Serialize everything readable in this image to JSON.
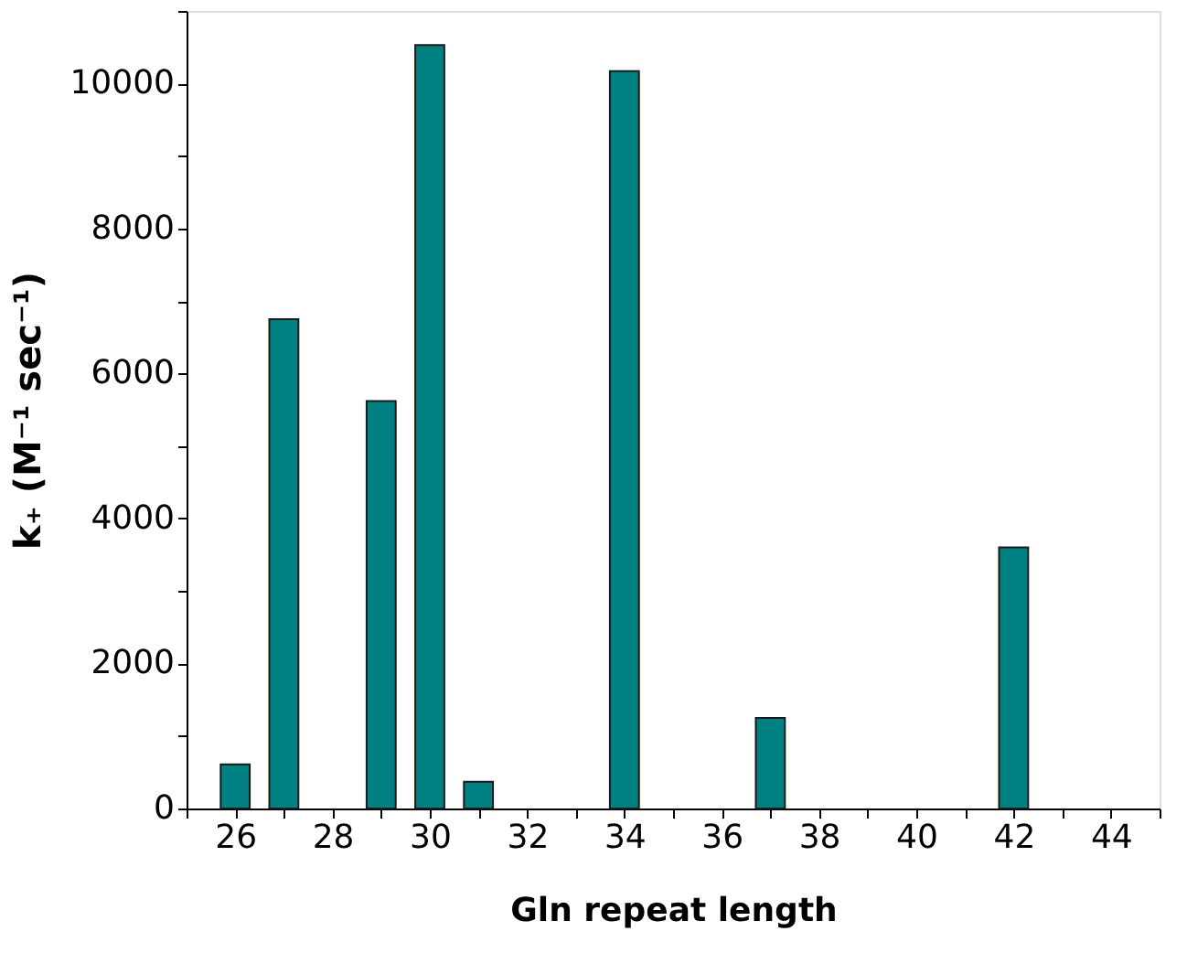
{
  "chart_data": {
    "type": "bar",
    "xlabel": "Gln repeat length",
    "ylabel": "k₊ (M⁻¹ sec⁻¹)",
    "x": [
      26,
      27,
      29,
      30,
      31,
      34,
      37,
      42
    ],
    "values": [
      610,
      6750,
      5620,
      10530,
      370,
      10170,
      1250,
      3600
    ],
    "color": "#008080",
    "xlim": [
      25,
      45
    ],
    "xticks": [
      {
        "value": 25,
        "label": null
      },
      26,
      {
        "value": 27,
        "label": null
      },
      28,
      {
        "value": 29,
        "label": null
      },
      30,
      {
        "value": 31,
        "label": null
      },
      32,
      {
        "value": 33,
        "label": null
      },
      34,
      {
        "value": 35,
        "label": null
      },
      36,
      {
        "value": 37,
        "label": null
      },
      38,
      {
        "value": 39,
        "label": null
      },
      40,
      {
        "value": 41,
        "label": null
      },
      42,
      {
        "value": 43,
        "label": null
      },
      44,
      {
        "value": 45,
        "label": null
      }
    ],
    "ylim": [
      0,
      11000
    ],
    "yticks": [
      0,
      {
        "value": 1000,
        "label": null
      },
      2000,
      {
        "value": 3000,
        "label": null
      },
      4000,
      {
        "value": 5000,
        "label": null
      },
      6000,
      {
        "value": 7000,
        "label": null
      },
      8000,
      {
        "value": 9000,
        "label": null
      },
      10000,
      {
        "value": 11000,
        "label": null
      }
    ],
    "grid": false
  }
}
